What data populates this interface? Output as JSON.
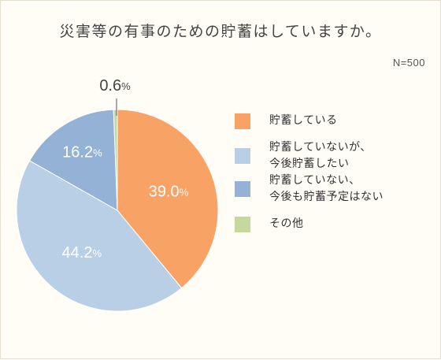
{
  "chart_data": {
    "type": "pie",
    "title": "災害等の有事のための貯蓄はしていますか。",
    "sample_size": "N=500",
    "categories": [
      "貯蓄している",
      "貯蓄していないが、\n今後貯蓄したい",
      "貯蓄していない、\n今後も貯蓄予定はない",
      "その他"
    ],
    "values": [
      39.0,
      44.2,
      16.2,
      0.6
    ],
    "value_labels": [
      "39.0",
      "44.2",
      "16.2",
      "0.6"
    ],
    "unit": "%",
    "colors": [
      "#f9a266",
      "#b9cfe6",
      "#93b2d6",
      "#c5d99f"
    ],
    "legend": "right"
  }
}
